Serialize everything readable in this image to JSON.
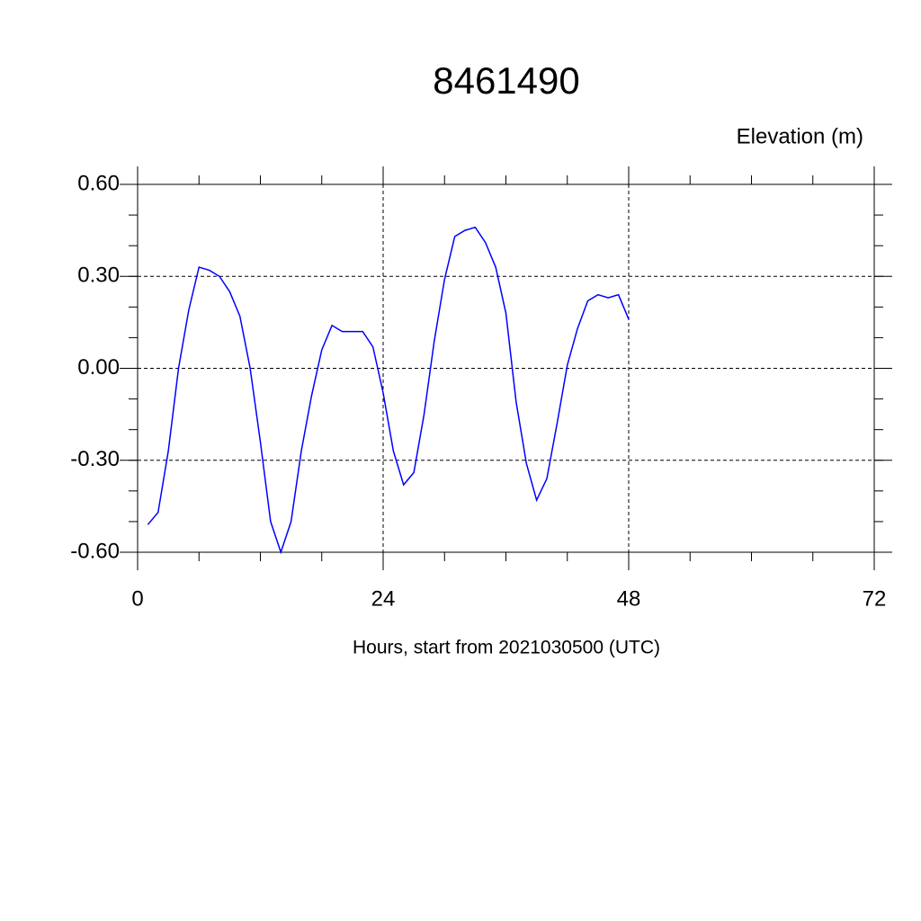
{
  "chart_data": {
    "type": "line",
    "title": "8461490",
    "y_label": "Elevation (m)",
    "x_label": "Hours, start from 2021030500 (UTC)",
    "x": [
      1,
      2,
      3,
      4,
      5,
      6,
      7,
      8,
      9,
      10,
      11,
      12,
      13,
      14,
      15,
      16,
      17,
      18,
      19,
      20,
      21,
      22,
      23,
      24,
      25,
      26,
      27,
      28,
      29,
      30,
      31,
      32,
      33,
      34,
      35,
      36,
      37,
      38,
      39,
      40,
      41,
      42,
      43,
      44,
      45,
      46,
      47,
      48
    ],
    "series": [
      {
        "name": "8461490",
        "color": "#0000ff",
        "values": [
          -0.51,
          -0.47,
          -0.27,
          0.0,
          0.19,
          0.33,
          0.32,
          0.3,
          0.25,
          0.17,
          0.0,
          -0.24,
          -0.5,
          -0.6,
          -0.5,
          -0.27,
          -0.09,
          0.06,
          0.14,
          0.12,
          0.12,
          0.12,
          0.07,
          -0.08,
          -0.27,
          -0.38,
          -0.34,
          -0.15,
          0.09,
          0.29,
          0.43,
          0.45,
          0.46,
          0.41,
          0.33,
          0.18,
          -0.11,
          -0.31,
          -0.43,
          -0.36,
          -0.18,
          0.01,
          0.13,
          0.22,
          0.24,
          0.23,
          0.24,
          0.16
        ]
      }
    ],
    "xlim": [
      0,
      72
    ],
    "xticks": [
      0,
      24,
      48,
      72
    ],
    "ylim": [
      -0.6,
      0.6
    ],
    "yticks": [
      {
        "value": 0.6,
        "label": "0.60"
      },
      {
        "value": 0.3,
        "label": "0.30"
      },
      {
        "value": 0,
        "label": "0.00"
      },
      {
        "value": -0.3,
        "label": "-0.30"
      },
      {
        "value": -0.6,
        "label": "-0.60"
      }
    ],
    "grid": true
  }
}
